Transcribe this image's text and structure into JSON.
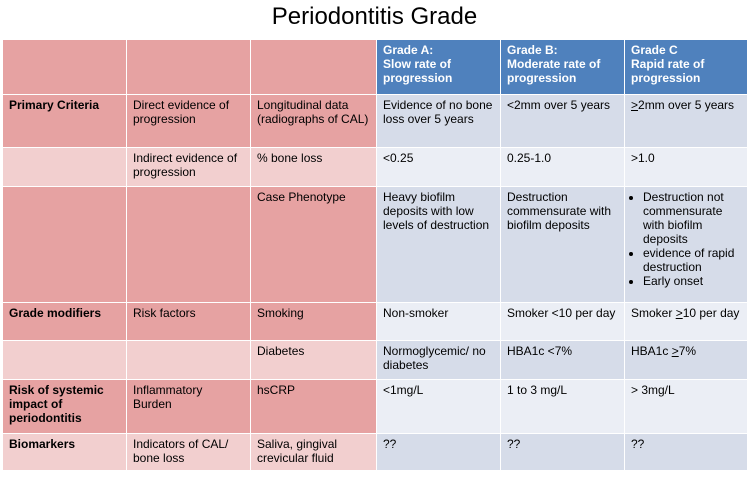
{
  "title": "Periodontitis Grade",
  "header": {
    "grade_a": {
      "grade": "Grade A:",
      "desc": "Slow rate of progression"
    },
    "grade_b": {
      "grade": "Grade B:",
      "desc": "Moderate rate of progression"
    },
    "grade_c": {
      "grade": "Grade C",
      "desc": "Rapid rate of progression"
    }
  },
  "rows": {
    "r1": {
      "col1": "Primary Criteria",
      "col2": "Direct evidence of progression",
      "col3": "Longitudinal data (radiographs of CAL)",
      "a": "Evidence of no bone loss over 5 years",
      "b": "<2mm over 5 years",
      "c_sym": ">",
      "c_rest": "2mm over 5 years"
    },
    "r2": {
      "col2": "Indirect evidence of progression",
      "col3": "% bone loss",
      "a": "<0.25",
      "b": "0.25-1.0",
      "c": ">1.0"
    },
    "r3": {
      "col3": "Case Phenotype",
      "a": "Heavy biofilm deposits with low levels of destruction",
      "b": "Destruction commensurate with biofilm deposits",
      "c_items": [
        "Destruction not commensurate with biofilm deposits",
        "evidence of rapid destruction",
        "Early onset"
      ]
    },
    "r4": {
      "col1": "Grade modifiers",
      "col2": "Risk factors",
      "col3": "Smoking",
      "a": "Non-smoker",
      "b": "Smoker <10 per day",
      "c_pre": "Smoker ",
      "c_sym": ">",
      "c_rest": "10 per day"
    },
    "r5": {
      "col3": "Diabetes",
      "a": "Normoglycemic/ no diabetes",
      "b": "HBA1c <7%",
      "c_pre": "HBA1c ",
      "c_sym": ">",
      "c_rest": "7%"
    },
    "r6": {
      "col1": "Risk of systemic impact of periodontitis",
      "col2": "Inflammatory Burden",
      "col3": "hsCRP",
      "a": "<1mg/L",
      "b": "1 to 3 mg/L",
      "c": "> 3mg/L"
    },
    "r7": {
      "col1": "Biomarkers",
      "col2": "Indicators of CAL/ bone loss",
      "col3": "Saliva, gingival crevicular fluid",
      "a": "??",
      "b": "??",
      "c": "??"
    }
  },
  "colors": {
    "pink": "#e6a2a2",
    "light_pink": "#f2cfcf",
    "header_blue": "#4f81bd",
    "light_blue_1": "#d6dce9",
    "light_blue_2": "#ebeef5"
  }
}
